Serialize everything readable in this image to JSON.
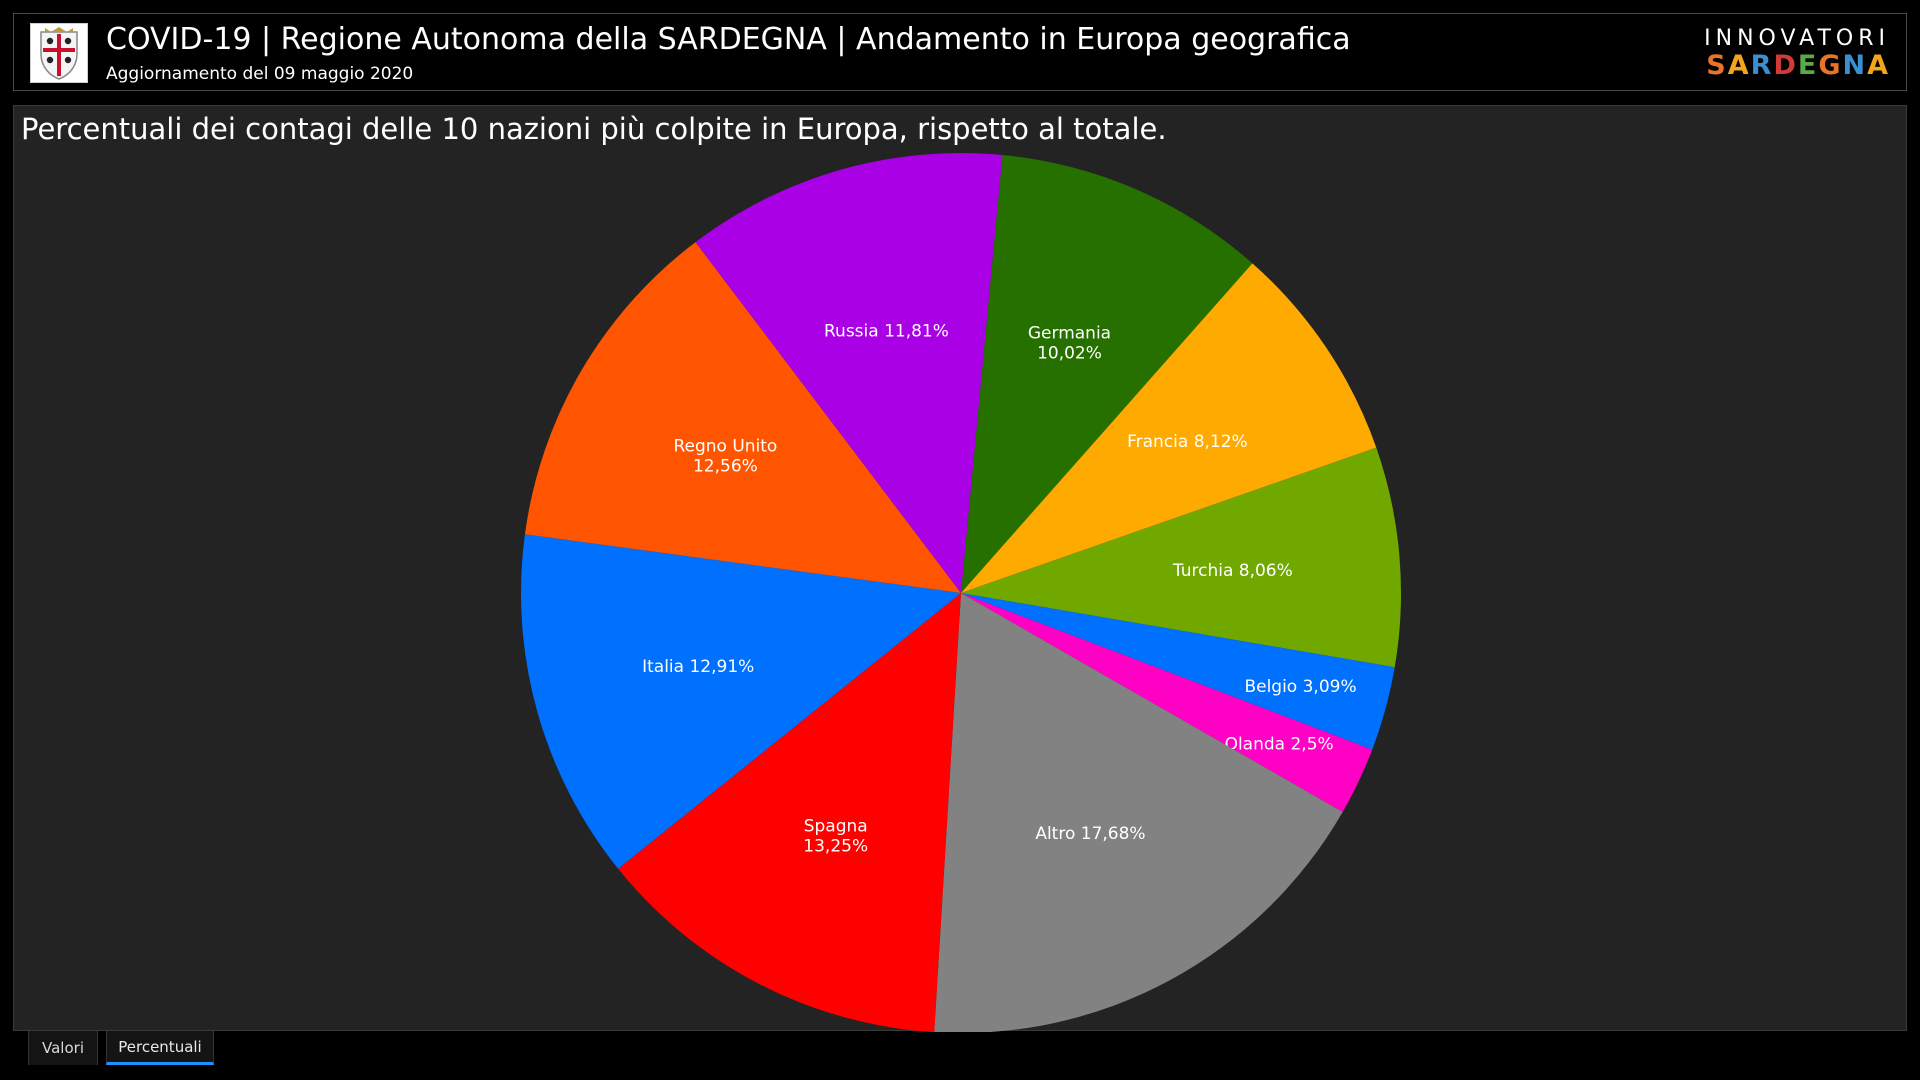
{
  "header": {
    "title": "COVID-19 | Regione Autonoma della SARDEGNA | Andamento in Europa geografica",
    "subtitle": "Aggiornamento del 09 maggio 2020",
    "logo_icon": "sardinia-coat-of-arms-icon",
    "brand_top": "INNOVATORI",
    "brand_letters": [
      "S",
      "A",
      "R",
      "D",
      "E",
      "G",
      "N",
      "A"
    ],
    "brand_colors": [
      "#e8742b",
      "#f2a51d",
      "#3a8fd0",
      "#d23a3a",
      "#5aa84a",
      "#e8742b",
      "#3a8fd0",
      "#f2a51d"
    ]
  },
  "panel": {
    "title": "Percentuali dei contagi delle 10 nazioni più colpite in Europa, rispetto al totale."
  },
  "chart_data": {
    "type": "pie",
    "title": "Percentuali dei contagi delle 10 nazioni più colpite in Europa, rispetto al totale.",
    "unit": "%",
    "slices": [
      {
        "name": "Germania",
        "value": 10.02,
        "label_lines": [
          "Germania",
          "10,02%"
        ],
        "color": "#267000"
      },
      {
        "name": "Francia",
        "value": 8.12,
        "label_lines": [
          "Francia 8,12%"
        ],
        "color": "#ffaa00"
      },
      {
        "name": "Turchia",
        "value": 8.06,
        "label_lines": [
          "Turchia 8,06%"
        ],
        "color": "#70a800"
      },
      {
        "name": "Belgio",
        "value": 3.09,
        "label_lines": [
          "Belgio 3,09%"
        ],
        "color": "#0070ff"
      },
      {
        "name": "Olanda",
        "value": 2.5,
        "label_lines": [
          "Olanda 2,5%"
        ],
        "color": "#ff00c5"
      },
      {
        "name": "Altro",
        "value": 17.68,
        "label_lines": [
          "Altro 17,68%"
        ],
        "color": "#828282"
      },
      {
        "name": "Spagna",
        "value": 13.25,
        "label_lines": [
          "Spagna",
          "13,25%"
        ],
        "color": "#ff0000"
      },
      {
        "name": "Italia",
        "value": 12.91,
        "label_lines": [
          "Italia 12,91%"
        ],
        "color": "#0070ff"
      },
      {
        "name": "Regno Unito",
        "value": 12.56,
        "label_lines": [
          "Regno Unito",
          "12,56%"
        ],
        "color": "#ff5500"
      },
      {
        "name": "Russia",
        "value": 11.81,
        "label_lines": [
          "Russia 11,81%"
        ],
        "color": "#a900e6"
      }
    ],
    "legend": "none",
    "label_color": "#ffffff"
  },
  "tabs": [
    {
      "label": "Valori",
      "active": false
    },
    {
      "label": "Percentuali",
      "active": true
    }
  ]
}
